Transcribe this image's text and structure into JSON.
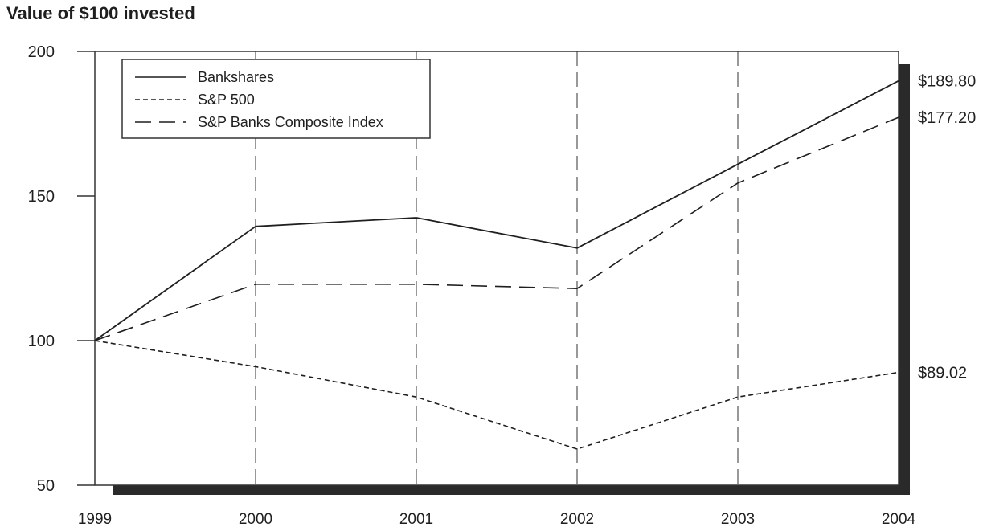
{
  "chart_data": {
    "type": "line",
    "title": "Value of $100 invested",
    "xlabel": "",
    "ylabel": "",
    "x": [
      "1999",
      "2000",
      "2001",
      "2002",
      "2003",
      "2004"
    ],
    "ylim": [
      50,
      200
    ],
    "yticks": [
      "50",
      "100",
      "150",
      "200"
    ],
    "grid": "vertical dashed lines at each year",
    "legend_position": "top-left",
    "series": [
      {
        "name": "Bankshares",
        "style": "solid",
        "values": [
          100,
          139.5,
          142.5,
          132,
          161,
          189.8
        ],
        "end_label": "$189.80"
      },
      {
        "name": "S&P 500",
        "style": "dotted",
        "values": [
          100,
          91,
          80.5,
          62.5,
          80.5,
          89.02
        ],
        "end_label": "$89.02"
      },
      {
        "name": "S&P Banks Composite Index",
        "style": "dashed",
        "values": [
          100,
          119.5,
          119.5,
          118,
          154.5,
          177.2
        ],
        "end_label": "$177.20"
      }
    ]
  },
  "colors": {
    "line": "#1f1f1f",
    "frame": "#333333",
    "shadow": "#2a2a2a",
    "gridline": "#555555",
    "background": "#ffffff"
  }
}
